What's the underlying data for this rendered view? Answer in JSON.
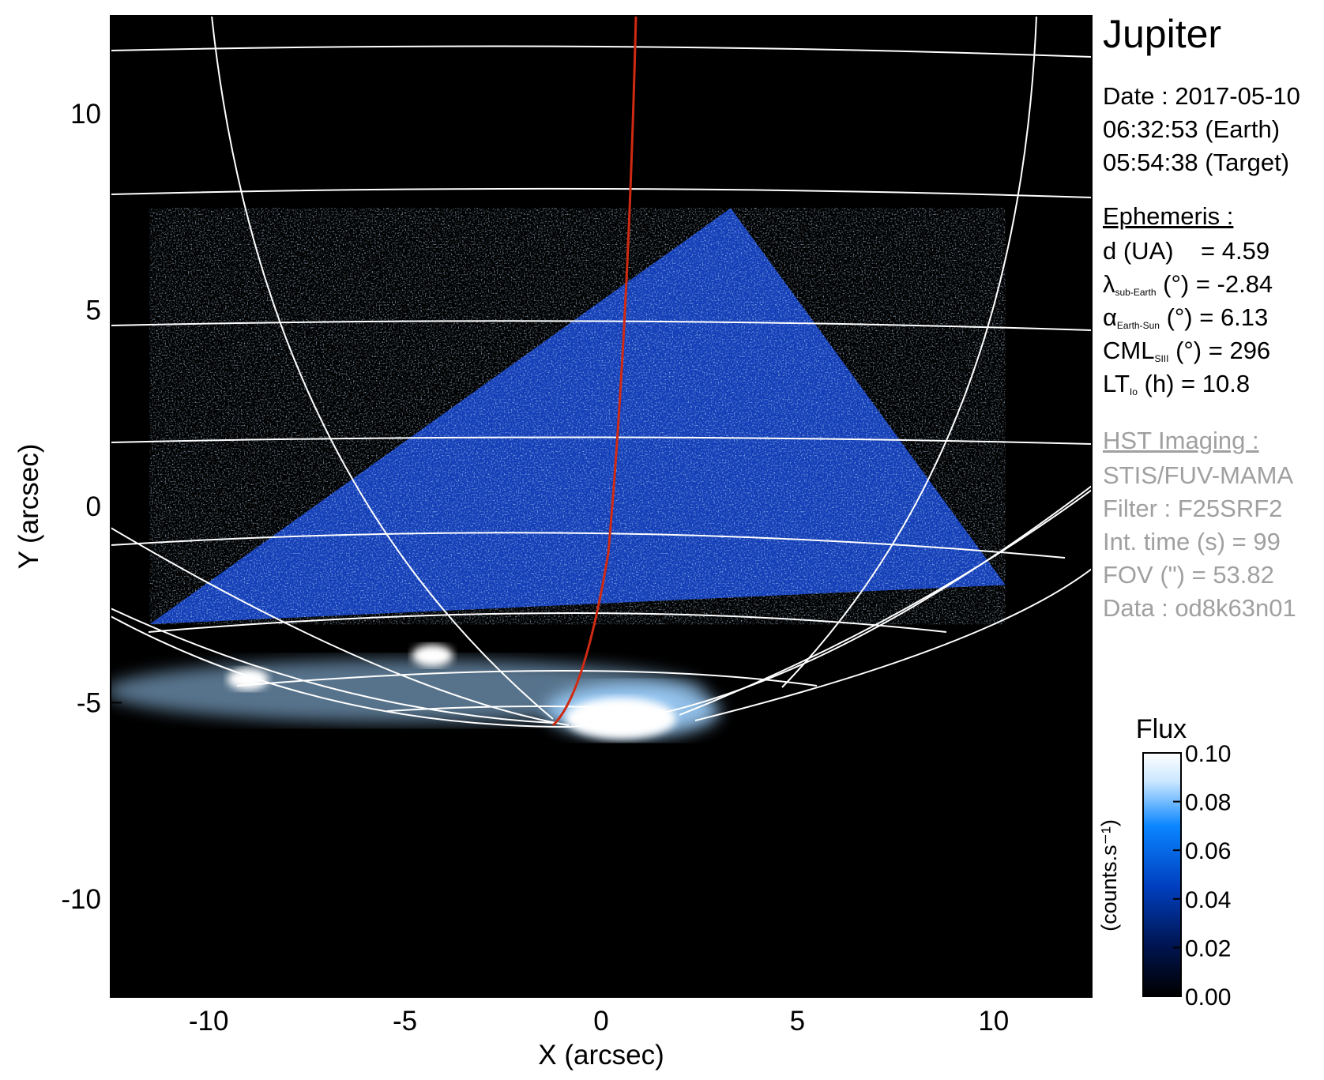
{
  "chart_data": {
    "type": "heatmap",
    "title": "Jupiter",
    "xlabel": "X (arcsec)",
    "ylabel": "Y (arcsec)",
    "xlim": [
      -12.5,
      12.5
    ],
    "ylim": [
      -12.5,
      12.5
    ],
    "xticks": [
      -10,
      -5,
      0,
      5,
      10
    ],
    "yticks": [
      10,
      5,
      0,
      -5,
      -10
    ],
    "colorbar": {
      "title": "Flux",
      "label": "(counts.s⁻¹)",
      "range": [
        0.0,
        0.1
      ],
      "ticks": [
        "0.10",
        "0.08",
        "0.06",
        "0.04",
        "0.02",
        "0.00"
      ],
      "colors": [
        "#000000",
        "#00134d",
        "#003fbf",
        "#0a86ff",
        "#c8e6ff",
        "#ffffff"
      ]
    },
    "observation_footprint": [
      [
        -11.5,
        -3.0
      ],
      [
        3.3,
        7.6
      ],
      [
        10.3,
        -2.0
      ]
    ],
    "auroral_spots": [
      {
        "x": -9.0,
        "y": -4.4,
        "label": ""
      },
      {
        "x": -4.3,
        "y": -3.8,
        "label": ""
      },
      {
        "x": 0.5,
        "y": -5.4,
        "label": ""
      }
    ],
    "red_trace": {
      "color": "#d02a12"
    },
    "grid_color": "#ffffff"
  },
  "info": {
    "planet": "Jupiter",
    "date": "Date : 2017-05-10",
    "time_earth": "06:32:53 (Earth)",
    "time_target": "05:54:38 (Target)",
    "ephemeris_header": "Ephemeris :",
    "d_label": "d (UA)",
    "d_value": "= 4.59",
    "lambda_symbol": "λ",
    "lambda_sub": "sub-Earth",
    "lambda_rest": " (°) = -2.84",
    "alpha_symbol": "α",
    "alpha_sub": "Earth-Sun",
    "alpha_rest": " (°) = 6.13",
    "cml_symbol": "CML",
    "cml_sub": "SIII",
    "cml_rest": " (°) = 296",
    "lt_symbol": "LT",
    "lt_sub": "Io",
    "lt_rest": " (h) = 10.8",
    "hst_header": "HST Imaging :",
    "instrument": "STIS/FUV-MAMA",
    "filter": "Filter : F25SRF2",
    "int_time": "Int. time (s) = 99",
    "fov": "FOV (\") = 53.82",
    "dataset": "Data : od8k63n01"
  }
}
